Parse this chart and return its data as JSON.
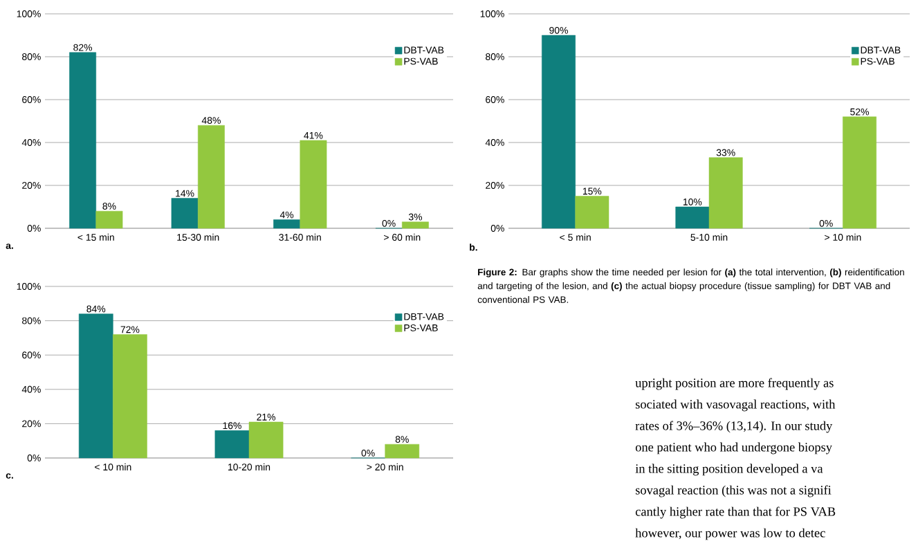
{
  "chart_data": [
    {
      "type": "bar",
      "categories": [
        "< 15 min",
        "15-30 min",
        "31-60 min",
        "> 60 min"
      ],
      "ylim": [
        0,
        100
      ],
      "yticks": [
        {
          "value": 0,
          "label": "0%"
        },
        {
          "value": 20,
          "label": "20%"
        },
        {
          "value": 40,
          "label": "40%"
        },
        {
          "value": 60,
          "label": "60%"
        },
        {
          "value": 80,
          "label": "80%"
        },
        {
          "value": 100,
          "label": "100%"
        }
      ],
      "grid": "y",
      "legend": "right",
      "annotations": [
        "a."
      ],
      "series": [
        {
          "name": "DBT-VAB",
          "color": "#0f7f7d",
          "values": [
            82,
            14,
            4,
            0
          ],
          "value_labels": [
            "82%",
            "14%",
            "4%",
            "0%"
          ]
        },
        {
          "name": "PS-VAB",
          "color": "#93c83f",
          "values": [
            8,
            48,
            41,
            3
          ],
          "value_labels": [
            "8%",
            "48%",
            "41%",
            "3%"
          ]
        }
      ]
    },
    {
      "type": "bar",
      "categories": [
        "< 5 min",
        "5-10 min",
        "> 10 min"
      ],
      "ylim": [
        0,
        100
      ],
      "yticks": [
        {
          "value": 0,
          "label": "0%"
        },
        {
          "value": 20,
          "label": "20%"
        },
        {
          "value": 40,
          "label": "40%"
        },
        {
          "value": 60,
          "label": "60%"
        },
        {
          "value": 80,
          "label": "80%"
        },
        {
          "value": 100,
          "label": "100%"
        }
      ],
      "grid": "y",
      "legend": "right",
      "annotations": [
        "b."
      ],
      "series": [
        {
          "name": "DBT-VAB",
          "color": "#0f7f7d",
          "values": [
            90,
            10,
            0
          ],
          "value_labels": [
            "90%",
            "10%",
            "0%"
          ]
        },
        {
          "name": "PS-VAB",
          "color": "#93c83f",
          "values": [
            15,
            33,
            52
          ],
          "value_labels": [
            "15%",
            "33%",
            "52%"
          ]
        }
      ]
    },
    {
      "type": "bar",
      "categories": [
        "< 10 min",
        "10-20 min",
        "> 20 min"
      ],
      "ylim": [
        0,
        100
      ],
      "yticks": [
        {
          "value": 0,
          "label": "0%"
        },
        {
          "value": 20,
          "label": "20%"
        },
        {
          "value": 40,
          "label": "40%"
        },
        {
          "value": 60,
          "label": "60%"
        },
        {
          "value": 80,
          "label": "80%"
        },
        {
          "value": 100,
          "label": "100%"
        }
      ],
      "grid": "y",
      "legend": "right",
      "annotations": [
        "c."
      ],
      "series": [
        {
          "name": "DBT-VAB",
          "color": "#0f7f7d",
          "values": [
            84,
            16,
            0
          ],
          "value_labels": [
            "84%",
            "16%",
            "0%"
          ]
        },
        {
          "name": "PS-VAB",
          "color": "#93c83f",
          "values": [
            72,
            21,
            8
          ],
          "value_labels": [
            "72%",
            "21%",
            "8%"
          ]
        }
      ]
    },
    {
      "type": "other",
      "annotations": [
        "**Figure 2:**    Bar graphs show the time needed per lesion for **(a)** the total intervention, **(b)** reidentification and targeting of the lesion, and **(c)** the actual biopsy procedure (tissue sampling) for DBT VAB and conventional PS VAB.",
        "upright position are more frequently as",
        "sociated with vasovagal reactions, with",
        "rates of 3%–36% (13,14). In our study",
        "one patient who had undergone biopsy",
        "in the sitting position developed a va",
        "sovagal reaction (this was not a signifi",
        "cantly higher rate than that for PS VAB",
        "however, our power was low to detec"
      ]
    }
  ]
}
